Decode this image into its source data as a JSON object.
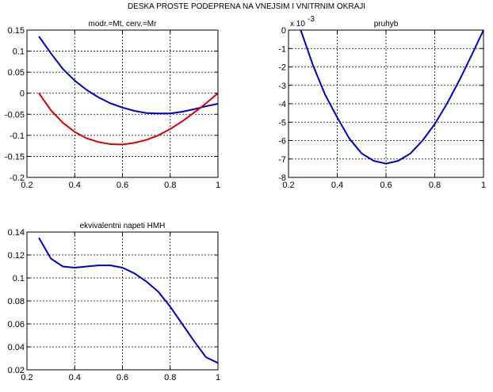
{
  "figure": {
    "suptitle": "DESKA PROSTE PODEPRENA NA VNEJSIM I VNITRNIM OKRAJI",
    "background": "#ffffff"
  },
  "chart_data": [
    {
      "type": "line",
      "title": "modr.=Mt, cerv.=Mr",
      "xlim": [
        0.2,
        1.0
      ],
      "ylim": [
        -0.2,
        0.15
      ],
      "xticks": [
        0.2,
        0.4,
        0.6,
        0.8,
        1.0
      ],
      "xtick_labels": [
        "0.2",
        "0.4",
        "0.6",
        "0.8",
        "1"
      ],
      "yticks": [
        -0.2,
        -0.15,
        -0.1,
        -0.05,
        0,
        0.05,
        0.1,
        0.15
      ],
      "ytick_labels": [
        "-0.2",
        "-0.15",
        "-0.1",
        "-0.05",
        "0",
        "0.05",
        "0.1",
        "0.15"
      ],
      "grid": true,
      "series": [
        {
          "color": "#0000cc",
          "x": [
            0.25,
            0.3,
            0.35,
            0.4,
            0.45,
            0.5,
            0.55,
            0.6,
            0.65,
            0.7,
            0.75,
            0.8,
            0.85,
            0.9,
            0.95,
            1.0
          ],
          "y": [
            0.135,
            0.095,
            0.058,
            0.03,
            0.008,
            -0.01,
            -0.024,
            -0.034,
            -0.042,
            -0.047,
            -0.048,
            -0.048,
            -0.044,
            -0.038,
            -0.031,
            -0.025
          ]
        },
        {
          "color": "#dd0000",
          "x": [
            0.25,
            0.3,
            0.35,
            0.4,
            0.45,
            0.5,
            0.55,
            0.6,
            0.65,
            0.7,
            0.75,
            0.8,
            0.85,
            0.9,
            0.95,
            1.0
          ],
          "y": [
            0.0,
            -0.04,
            -0.07,
            -0.092,
            -0.107,
            -0.116,
            -0.121,
            -0.122,
            -0.118,
            -0.111,
            -0.1,
            -0.085,
            -0.067,
            -0.046,
            -0.024,
            0.0
          ]
        }
      ]
    },
    {
      "type": "line",
      "title": "pruhyb",
      "exponent_label": "x 10",
      "exponent_power": "-3",
      "xlim": [
        0.2,
        1.0
      ],
      "ylim": [
        -8,
        0
      ],
      "xticks": [
        0.2,
        0.4,
        0.6,
        0.8,
        1.0
      ],
      "xtick_labels": [
        "0.2",
        "0.4",
        "0.6",
        "0.8",
        "1"
      ],
      "yticks": [
        -8,
        -7,
        -6,
        -5,
        -4,
        -3,
        -2,
        -1,
        0
      ],
      "ytick_labels": [
        "-8",
        "-7",
        "-6",
        "-5",
        "-4",
        "-3",
        "-2",
        "-1",
        "0"
      ],
      "grid": true,
      "series": [
        {
          "color": "#0000cc",
          "x": [
            0.25,
            0.3,
            0.35,
            0.4,
            0.45,
            0.5,
            0.55,
            0.6,
            0.65,
            0.7,
            0.75,
            0.8,
            0.85,
            0.9,
            0.95,
            1.0
          ],
          "y": [
            0.0,
            -1.9,
            -3.5,
            -4.75,
            -5.9,
            -6.7,
            -7.1,
            -7.25,
            -7.1,
            -6.7,
            -6.0,
            -5.1,
            -4.0,
            -2.75,
            -1.4,
            0.0
          ]
        }
      ]
    },
    {
      "type": "line",
      "title": "ekvivalentni napeti HMH",
      "xlim": [
        0.2,
        1.0
      ],
      "ylim": [
        0.02,
        0.14
      ],
      "xticks": [
        0.2,
        0.4,
        0.6,
        0.8,
        1.0
      ],
      "xtick_labels": [
        "0.2",
        "0.4",
        "0.6",
        "0.8",
        "1"
      ],
      "yticks": [
        0.02,
        0.04,
        0.06,
        0.08,
        0.1,
        0.12,
        0.14
      ],
      "ytick_labels": [
        "0.02",
        "0.04",
        "0.06",
        "0.08",
        "0.1",
        "0.12",
        "0.14"
      ],
      "grid": true,
      "series": [
        {
          "color": "#0000cc",
          "x": [
            0.25,
            0.3,
            0.35,
            0.4,
            0.45,
            0.5,
            0.55,
            0.6,
            0.65,
            0.7,
            0.75,
            0.8,
            0.85,
            0.9,
            0.95,
            1.0
          ],
          "y": [
            0.135,
            0.117,
            0.11,
            0.109,
            0.11,
            0.111,
            0.111,
            0.109,
            0.104,
            0.097,
            0.088,
            0.075,
            0.06,
            0.045,
            0.031,
            0.026
          ]
        }
      ]
    }
  ]
}
